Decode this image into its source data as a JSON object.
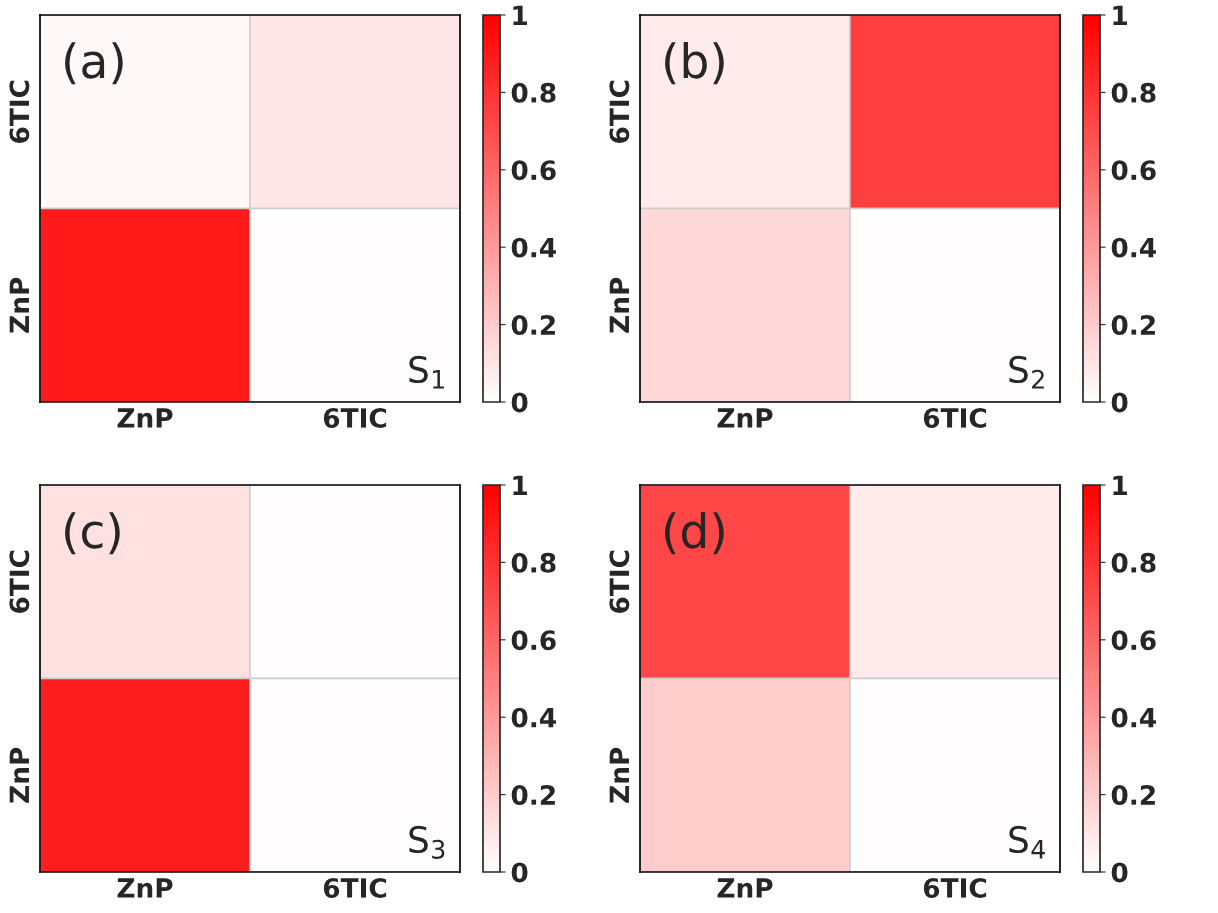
{
  "chart_data": [
    {
      "type": "heatmap",
      "categories": [
        "ZnP",
        "6TIC"
      ],
      "y_categories": [
        "6TIC",
        "ZnP"
      ],
      "cells": [
        [
          0.03,
          0.1
        ],
        [
          0.9,
          0.01
        ]
      ],
      "clim": [
        0,
        1
      ],
      "cticks": [
        0,
        0.2,
        0.4,
        0.6,
        0.8,
        1
      ],
      "annotations": [
        "(a)",
        "S$_{1}$"
      ]
    },
    {
      "type": "heatmap",
      "categories": [
        "ZnP",
        "6TIC"
      ],
      "y_categories": [
        "6TIC",
        "ZnP"
      ],
      "cells": [
        [
          0.08,
          0.75
        ],
        [
          0.15,
          0.01
        ]
      ],
      "clim": [
        0,
        1
      ],
      "cticks": [
        0,
        0.2,
        0.4,
        0.6,
        0.8,
        1
      ],
      "annotations": [
        "(b)",
        "S$_{2}$"
      ]
    },
    {
      "type": "heatmap",
      "categories": [
        "ZnP",
        "6TIC"
      ],
      "y_categories": [
        "6TIC",
        "ZnP"
      ],
      "cells": [
        [
          0.12,
          0.01
        ],
        [
          0.88,
          0.01
        ]
      ],
      "clim": [
        0,
        1
      ],
      "cticks": [
        0,
        0.2,
        0.4,
        0.6,
        0.8,
        1
      ],
      "annotations": [
        "(c)",
        "S$_{3}$"
      ]
    },
    {
      "type": "heatmap",
      "categories": [
        "ZnP",
        "6TIC"
      ],
      "y_categories": [
        "6TIC",
        "ZnP"
      ],
      "cells": [
        [
          0.72,
          0.08
        ],
        [
          0.2,
          0.01
        ]
      ],
      "clim": [
        0,
        1
      ],
      "cticks": [
        0,
        0.2,
        0.4,
        0.6,
        0.8,
        1
      ],
      "annotations": [
        "(d)",
        "S$_{4}$"
      ]
    }
  ]
}
